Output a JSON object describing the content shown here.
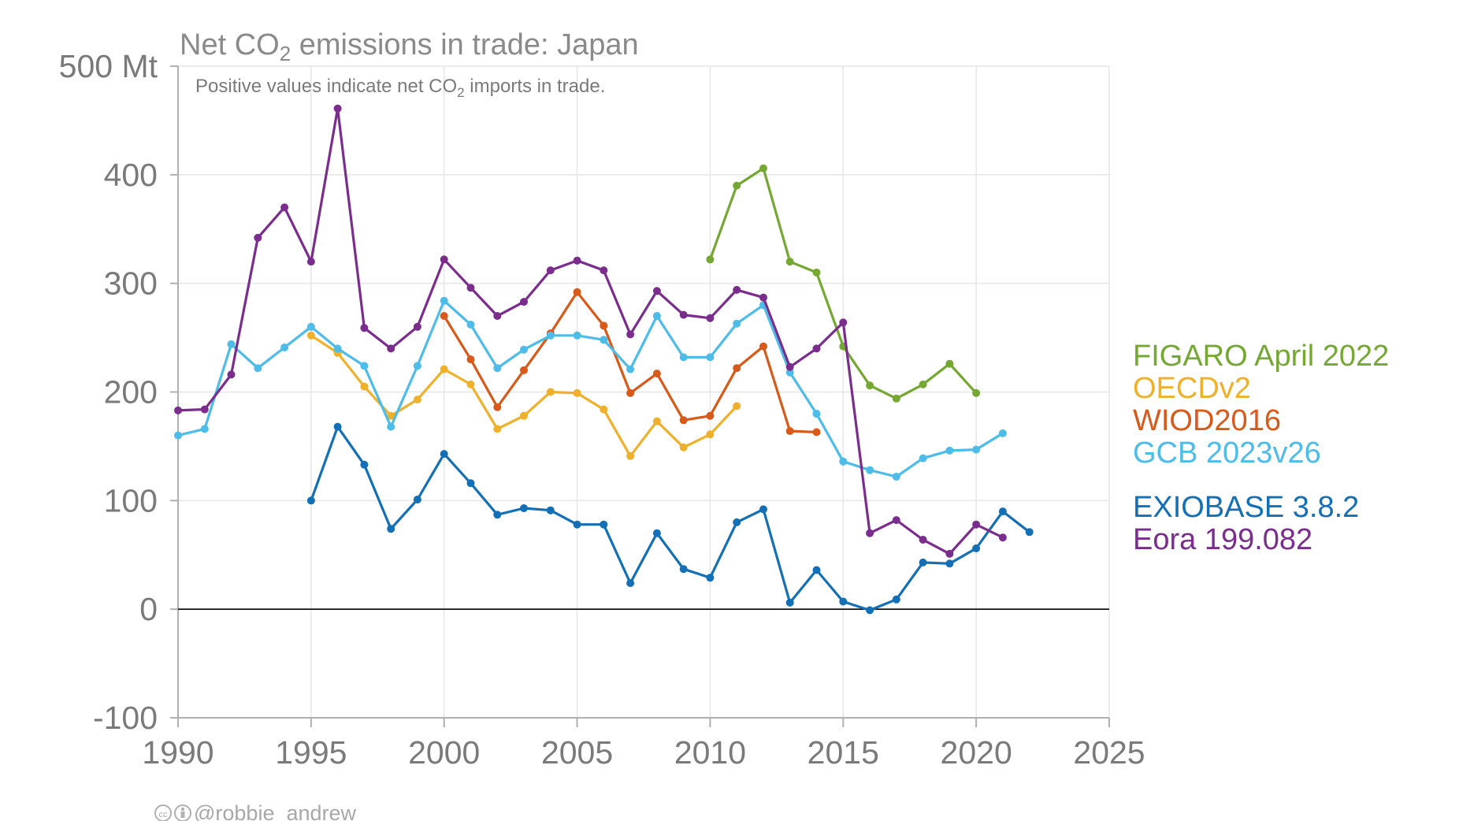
{
  "chart_data": {
    "type": "line",
    "title_main": "Net CO",
    "title_sub": "2",
    "title_rest": " emissions in trade: Japan",
    "subtitle_main": "Positive values indicate net CO",
    "subtitle_sub": "2",
    "subtitle_rest": " imports in trade.",
    "y_unit": "Mt",
    "xlim": [
      1990,
      2025
    ],
    "ylim": [
      -100,
      500
    ],
    "x_ticks": [
      "1990",
      "1995",
      "2000",
      "2005",
      "2010",
      "2015",
      "2020",
      "2025"
    ],
    "y_ticks": [
      "-100",
      "0",
      "100",
      "200",
      "300",
      "400",
      "500 Mt"
    ],
    "grid": true,
    "legend_position": "right",
    "credit": "@robbie_andrew",
    "series": [
      {
        "name": "FIGARO April 2022",
        "color": "#74a833",
        "x": [
          2010,
          2011,
          2012,
          2013,
          2014,
          2015,
          2016,
          2017,
          2018,
          2019,
          2020
        ],
        "y": [
          322,
          390,
          406,
          320,
          310,
          242,
          206,
          194,
          207,
          226,
          199
        ]
      },
      {
        "name": "OECDv2",
        "color": "#efb12c",
        "x": [
          1995,
          1996,
          1997,
          1998,
          1999,
          2000,
          2001,
          2002,
          2003,
          2004,
          2005,
          2006,
          2007,
          2008,
          2009,
          2010,
          2011
        ],
        "y": [
          252,
          236,
          205,
          178,
          193,
          221,
          207,
          166,
          178,
          200,
          199,
          184,
          141,
          173,
          149,
          161,
          187
        ]
      },
      {
        "name": "WIOD2016",
        "color": "#d85a1a",
        "x": [
          2000,
          2001,
          2002,
          2003,
          2004,
          2005,
          2006,
          2007,
          2008,
          2009,
          2010,
          2011,
          2012,
          2013,
          2014
        ],
        "y": [
          270,
          230,
          186,
          220,
          254,
          292,
          261,
          199,
          217,
          174,
          178,
          222,
          242,
          164,
          163
        ]
      },
      {
        "name": "GCB 2023v26",
        "color": "#4dbce8",
        "x": [
          1990,
          1991,
          1992,
          1993,
          1994,
          1995,
          1996,
          1997,
          1998,
          1999,
          2000,
          2001,
          2002,
          2003,
          2004,
          2005,
          2006,
          2007,
          2008,
          2009,
          2010,
          2011,
          2012,
          2013,
          2014,
          2015,
          2016,
          2017,
          2018,
          2019,
          2020,
          2021
        ],
        "y": [
          160,
          166,
          244,
          222,
          241,
          260,
          240,
          224,
          168,
          224,
          284,
          262,
          222,
          239,
          252,
          252,
          248,
          221,
          270,
          232,
          232,
          263,
          280,
          218,
          180,
          136,
          128,
          122,
          139,
          146,
          147,
          162
        ]
      },
      {
        "name": "EXIOBASE 3.8.2",
        "color": "#136fb6",
        "x": [
          1995,
          1996,
          1997,
          1998,
          1999,
          2000,
          2001,
          2002,
          2003,
          2004,
          2005,
          2006,
          2007,
          2008,
          2009,
          2010,
          2011,
          2012,
          2013,
          2014,
          2015,
          2016,
          2017,
          2018,
          2019,
          2020,
          2021,
          2022
        ],
        "y": [
          100,
          168,
          133,
          74,
          101,
          143,
          116,
          87,
          93,
          91,
          78,
          78,
          24,
          70,
          37,
          29,
          80,
          92,
          6,
          36,
          7,
          -1,
          9,
          43,
          42,
          56,
          90,
          71
        ]
      },
      {
        "name": "Eora 199.082",
        "color": "#7b2d8e",
        "x": [
          1990,
          1991,
          1992,
          1993,
          1994,
          1995,
          1996,
          1997,
          1998,
          1999,
          2000,
          2001,
          2002,
          2003,
          2004,
          2005,
          2006,
          2007,
          2008,
          2009,
          2010,
          2011,
          2012,
          2013,
          2014,
          2015,
          2016,
          2017,
          2018,
          2019,
          2020,
          2021
        ],
        "y": [
          183,
          184,
          216,
          342,
          370,
          320,
          461,
          259,
          240,
          260,
          322,
          296,
          270,
          283,
          312,
          321,
          312,
          253,
          293,
          271,
          268,
          294,
          287,
          223,
          240,
          264,
          70,
          82,
          64,
          51,
          78,
          66
        ]
      }
    ]
  }
}
